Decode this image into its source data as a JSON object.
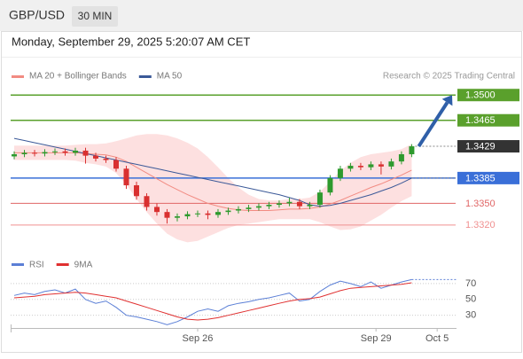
{
  "header": {
    "symbol": "GBP/USD",
    "interval": "30 MIN",
    "timestamp": "Monday, September 29, 2025 5:20:07 AM CET"
  },
  "chart_data": [
    {
      "type": "candlestick",
      "source": "Research © 2025 Trading Central",
      "x": [
        0,
        1,
        2,
        3,
        4,
        5,
        6,
        7,
        8,
        9,
        10,
        11,
        12,
        13,
        14,
        15,
        16,
        17,
        18,
        19,
        20,
        21,
        22,
        23,
        24,
        25,
        26,
        27,
        28,
        29,
        30,
        31,
        32,
        33,
        34,
        35,
        36,
        37,
        38,
        39
      ],
      "open": [
        1.3415,
        1.3418,
        1.342,
        1.3419,
        1.3421,
        1.3422,
        1.342,
        1.3423,
        1.3416,
        1.3412,
        1.341,
        1.3398,
        1.3375,
        1.336,
        1.3345,
        1.3338,
        1.333,
        1.3332,
        1.3335,
        1.3336,
        1.3334,
        1.3338,
        1.334,
        1.3342,
        1.3344,
        1.3346,
        1.3348,
        1.335,
        1.3352,
        1.3346,
        1.3348,
        1.3365,
        1.3385,
        1.3398,
        1.3402,
        1.34,
        1.3404,
        1.3401,
        1.3408,
        1.3418
      ],
      "high": [
        1.3422,
        1.3424,
        1.3424,
        1.3425,
        1.3426,
        1.3426,
        1.3427,
        1.3427,
        1.342,
        1.3416,
        1.3414,
        1.3402,
        1.338,
        1.3364,
        1.335,
        1.3342,
        1.3336,
        1.3339,
        1.334,
        1.334,
        1.3342,
        1.3344,
        1.3346,
        1.3348,
        1.335,
        1.3352,
        1.3354,
        1.3358,
        1.3356,
        1.3352,
        1.3369,
        1.3389,
        1.3402,
        1.3406,
        1.3406,
        1.3408,
        1.3408,
        1.3412,
        1.3422,
        1.3432
      ],
      "low": [
        1.3411,
        1.3414,
        1.3415,
        1.3415,
        1.3417,
        1.3416,
        1.3416,
        1.3405,
        1.3408,
        1.3406,
        1.3394,
        1.337,
        1.3355,
        1.334,
        1.3333,
        1.3322,
        1.3325,
        1.3328,
        1.3331,
        1.3328,
        1.333,
        1.3334,
        1.3336,
        1.3338,
        1.334,
        1.3342,
        1.3344,
        1.3346,
        1.3342,
        1.3342,
        1.3344,
        1.3361,
        1.3381,
        1.3394,
        1.3396,
        1.3396,
        1.339,
        1.3397,
        1.3404,
        1.3414
      ],
      "close": [
        1.3418,
        1.342,
        1.3419,
        1.3421,
        1.3422,
        1.342,
        1.3423,
        1.3416,
        1.3412,
        1.341,
        1.3398,
        1.3375,
        1.336,
        1.3345,
        1.3338,
        1.333,
        1.3332,
        1.3335,
        1.3336,
        1.3334,
        1.3338,
        1.334,
        1.3342,
        1.3344,
        1.3346,
        1.3348,
        1.335,
        1.3352,
        1.3346,
        1.3348,
        1.3365,
        1.3385,
        1.3398,
        1.3402,
        1.34,
        1.3404,
        1.3401,
        1.3408,
        1.3418,
        1.3429
      ],
      "up_color": "#2e9a2e",
      "down_color": "#d93030",
      "xlim": [
        -0.35,
        43.4
      ],
      "xticks": [
        {
          "value": 18,
          "label": "Sep 26"
        },
        {
          "value": 35.5,
          "label": "Sep 29"
        },
        {
          "value": 41.5,
          "label": "Oct 5"
        }
      ],
      "ylim": [
        1.3294,
        1.3515
      ],
      "series": [
        {
          "name": "MA 20 + Bollinger Bands",
          "color": "#f28b82",
          "band_color": "#fde0e0",
          "values": [
            1.342,
            1.342,
            1.342,
            1.342,
            1.342,
            1.342,
            1.342,
            1.3419,
            1.3418,
            1.3417,
            1.3414,
            1.3408,
            1.34,
            1.3392,
            1.3384,
            1.3376,
            1.3369,
            1.3362,
            1.3356,
            1.335,
            1.3346,
            1.3343,
            1.3341,
            1.334,
            1.334,
            1.334,
            1.3341,
            1.3342,
            1.3342,
            1.3343,
            1.3345,
            1.3349,
            1.3354,
            1.336,
            1.3366,
            1.3372,
            1.3377,
            1.3383,
            1.3389,
            1.3396
          ],
          "upper": [
            1.343,
            1.343,
            1.343,
            1.343,
            1.343,
            1.343,
            1.3431,
            1.3432,
            1.3432,
            1.3433,
            1.3436,
            1.344,
            1.3444,
            1.3446,
            1.3446,
            1.3444,
            1.344,
            1.3434,
            1.3426,
            1.3414,
            1.34,
            1.3385,
            1.3372,
            1.3362,
            1.3356,
            1.3354,
            1.3354,
            1.3356,
            1.3356,
            1.3358,
            1.3366,
            1.338,
            1.3395,
            1.3406,
            1.3414,
            1.3418,
            1.342,
            1.3422,
            1.3425,
            1.3432
          ],
          "lower": [
            1.341,
            1.341,
            1.341,
            1.341,
            1.341,
            1.341,
            1.3409,
            1.3406,
            1.3404,
            1.3401,
            1.3392,
            1.3376,
            1.3356,
            1.3338,
            1.3322,
            1.3308,
            1.33,
            1.3296,
            1.3298,
            1.3304,
            1.331,
            1.3316,
            1.332,
            1.3322,
            1.3324,
            1.3326,
            1.3328,
            1.3328,
            1.3328,
            1.3328,
            1.3324,
            1.3318,
            1.3313,
            1.3314,
            1.3318,
            1.3326,
            1.3334,
            1.3344,
            1.3353,
            1.336
          ]
        },
        {
          "name": "MA 50",
          "color": "#3b5998",
          "values": [
            1.344,
            1.3437,
            1.3434,
            1.3431,
            1.3428,
            1.3425,
            1.3422,
            1.3419,
            1.3416,
            1.3413,
            1.341,
            1.3407,
            1.3404,
            1.3401,
            1.3398,
            1.3395,
            1.3392,
            1.3389,
            1.3386,
            1.3383,
            1.338,
            1.3377,
            1.3374,
            1.3371,
            1.3368,
            1.3365,
            1.3362,
            1.3358,
            1.3354,
            1.3348,
            1.3346,
            1.3347,
            1.335,
            1.3354,
            1.3358,
            1.3362,
            1.3367,
            1.3372,
            1.3378,
            1.3385
          ]
        }
      ],
      "levels": [
        {
          "value": 1.35,
          "label": "1.3500",
          "color": "#5aa02c",
          "filled": true
        },
        {
          "value": 1.3465,
          "color": "#5aa02c",
          "filled": true
        },
        {
          "value": 1.3429,
          "color": "#333333",
          "filled": true,
          "dotted": true
        },
        {
          "value": 1.3385,
          "color": "#3a6fd8",
          "filled": true
        },
        {
          "value": 1.335,
          "label": "1.3350",
          "color": "#e06666",
          "filled": false
        },
        {
          "value": 1.332,
          "label": "1.3320",
          "color": "#f09090",
          "filled": false
        }
      ]
    },
    {
      "type": "line",
      "ylim": [
        14,
        81
      ],
      "yticks": [
        30,
        50,
        70
      ],
      "series": [
        {
          "name": "RSI",
          "color": "#5b7fd6",
          "values": [
            55,
            58,
            56,
            60,
            62,
            58,
            63,
            50,
            45,
            48,
            40,
            30,
            28,
            25,
            22,
            18,
            22,
            28,
            35,
            38,
            35,
            42,
            45,
            47,
            50,
            52,
            55,
            58,
            48,
            50,
            60,
            68,
            73,
            70,
            66,
            72,
            64,
            68,
            72,
            75
          ]
        },
        {
          "name": "9MA",
          "color": "#e03030",
          "values": [
            52,
            53,
            54,
            56,
            57,
            58,
            59,
            58,
            56,
            54,
            52,
            48,
            44,
            40,
            36,
            32,
            28,
            25,
            24,
            25,
            27,
            30,
            33,
            36,
            39,
            42,
            45,
            48,
            50,
            51,
            53,
            57,
            61,
            64,
            65,
            66,
            67,
            68,
            69,
            71
          ]
        }
      ]
    }
  ]
}
